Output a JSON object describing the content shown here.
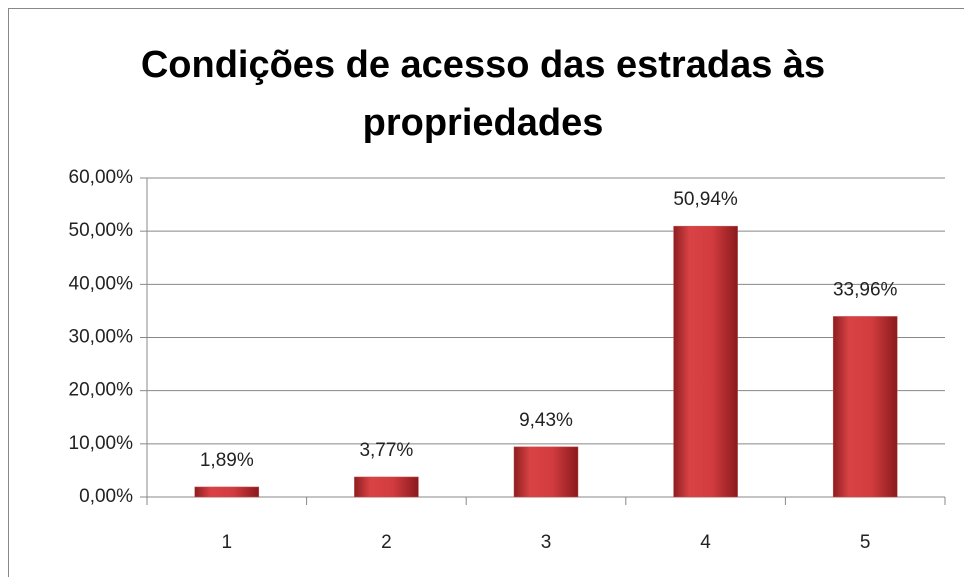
{
  "chart_data": {
    "type": "bar",
    "title": "Condições de acesso das estradas às propriedades",
    "categories": [
      "1",
      "2",
      "3",
      "4",
      "5"
    ],
    "values": [
      1.89,
      3.77,
      9.43,
      50.94,
      33.96
    ],
    "value_labels": [
      "1,89%",
      "3,77%",
      "9,43%",
      "50,94%",
      "33,96%"
    ],
    "color": "#c0504d",
    "ylim": [
      0,
      60
    ],
    "yticks": [
      {
        "value": 0,
        "label": "0,00%"
      },
      {
        "value": 10,
        "label": "10,00%"
      },
      {
        "value": 20,
        "label": "20,00%"
      },
      {
        "value": 30,
        "label": "30,00%"
      },
      {
        "value": 40,
        "label": "40,00%"
      },
      {
        "value": 50,
        "label": "50,00%"
      },
      {
        "value": 60,
        "label": "60,00%"
      }
    ],
    "grid": true
  }
}
